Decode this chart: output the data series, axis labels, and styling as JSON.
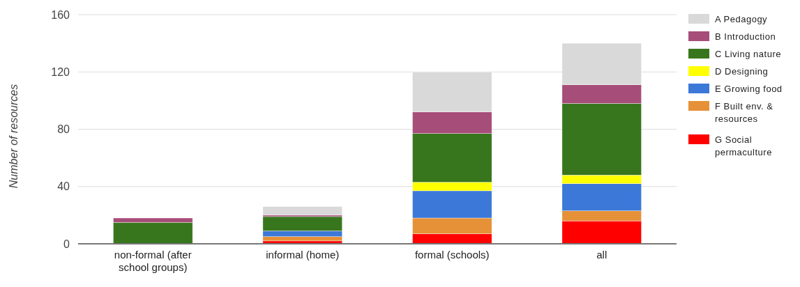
{
  "chart_data": {
    "type": "bar",
    "stacked": true,
    "ylabel": "Number of resources",
    "categories": [
      "non-formal (after school groups)",
      "informal (home)",
      "formal (schools)",
      "all"
    ],
    "series": [
      {
        "name": "G Social permaculture",
        "color": "#ff0000",
        "values": [
          0,
          2,
          7,
          16
        ]
      },
      {
        "name": "F Built env. & resources",
        "color": "#e69138",
        "values": [
          0,
          3,
          11,
          7
        ]
      },
      {
        "name": "E Growing food",
        "color": "#3c78d8",
        "values": [
          0,
          4,
          19,
          19
        ]
      },
      {
        "name": "D Designing",
        "color": "#ffff00",
        "values": [
          0,
          0,
          6,
          6
        ]
      },
      {
        "name": "C Living nature",
        "color": "#38761d",
        "values": [
          15,
          10,
          34,
          50
        ]
      },
      {
        "name": "B Introduction",
        "color": "#a64d79",
        "values": [
          3,
          1,
          15,
          13
        ]
      },
      {
        "name": "A Pedagogy",
        "color": "#d9d9d9",
        "values": [
          0,
          6,
          28,
          29
        ]
      }
    ],
    "ylim": [
      0,
      160
    ],
    "yticks": [
      0,
      40,
      80,
      120,
      160
    ],
    "grid": "y",
    "legend": "right"
  }
}
